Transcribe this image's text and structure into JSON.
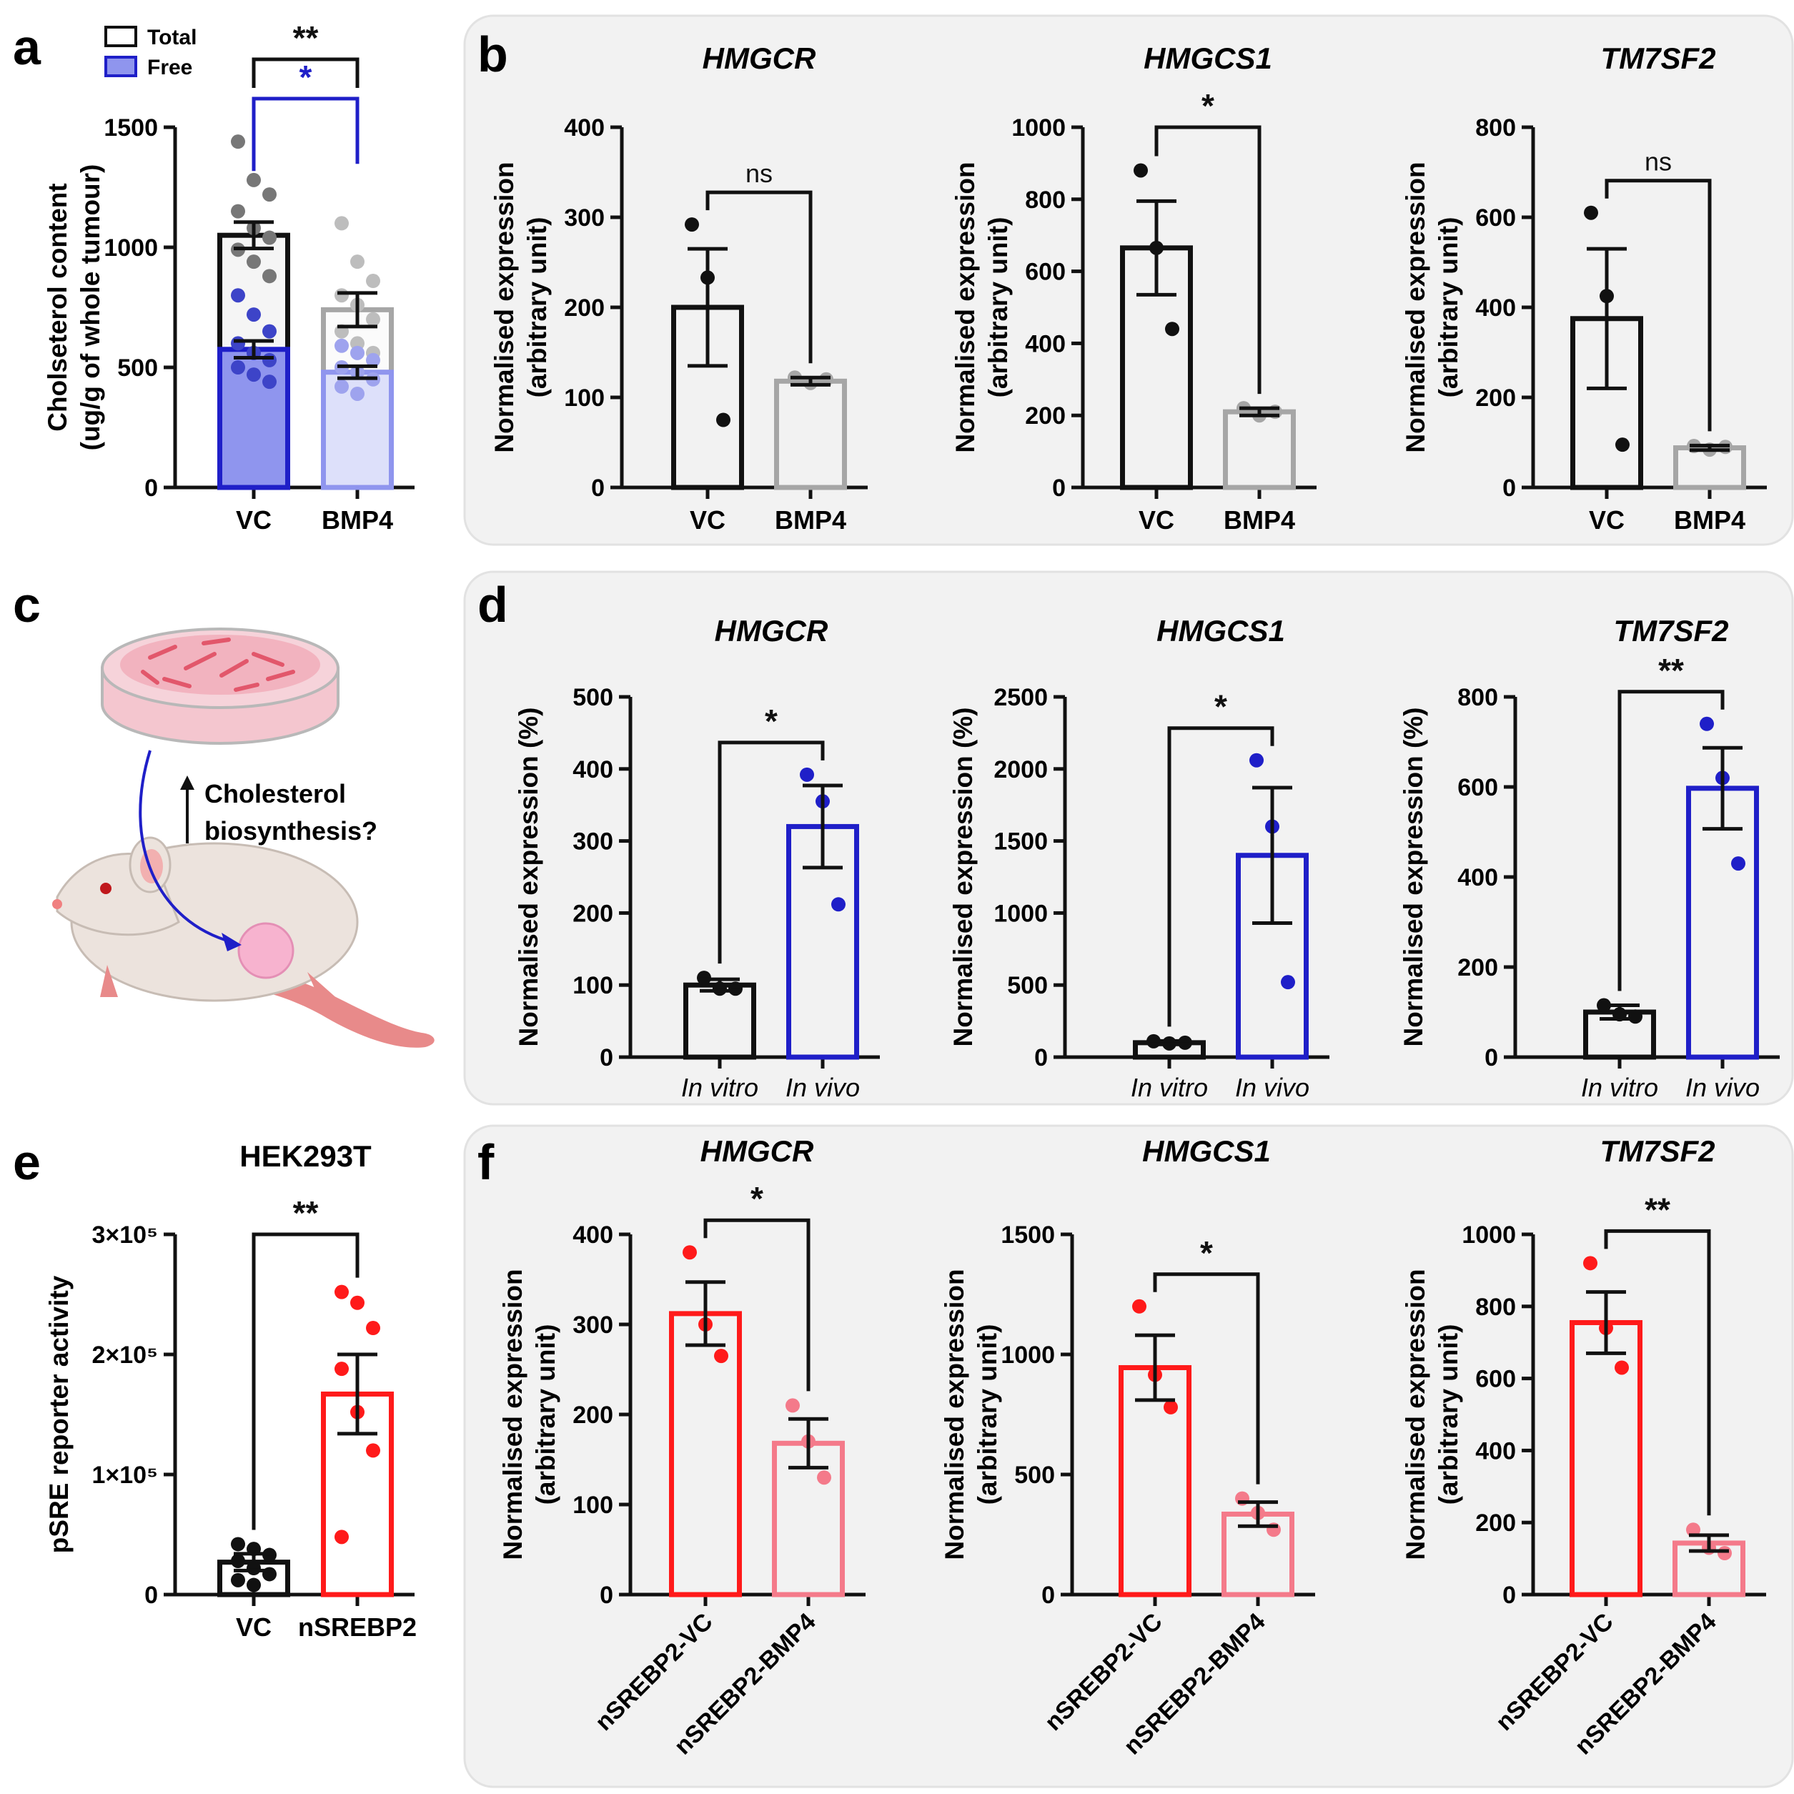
{
  "colors": {
    "black": "#111111",
    "grey": "#a6a6a6",
    "blue": "#1f1fc8",
    "light_blue_fill": "#dde0fa",
    "blue_fill": "#8f95ee",
    "red": "#ff1a1a",
    "pink": "#f47a8a",
    "panel_bg": "#f2f2f2",
    "panel_border": "#e2e2e2",
    "mouse_body": "#ece3dd",
    "tumour": "#f7b3cf",
    "dish": "#f4c6cf"
  },
  "panel_c": {
    "letter": "c",
    "caption_line1": "Cholesterol",
    "caption_line2": "biosynthesis?"
  },
  "chart_data": [
    {
      "id": "a",
      "letter": "a",
      "type": "bar",
      "title": "",
      "ylabel": "Cholseterol content\n(ug/g of whole tumour)",
      "xlabel": "",
      "ylim": [
        0,
        1500
      ],
      "yticks": [
        "0",
        "500",
        "1000",
        "1500"
      ],
      "categories": [
        "VC",
        "BMP4"
      ],
      "legend": [
        "Total",
        "Free"
      ],
      "legend_position": "top-left",
      "series": [
        {
          "name": "Total",
          "values": [
            1050,
            740
          ],
          "errors": [
            55,
            70
          ],
          "points": [
            [
              1440,
              1280,
              1220,
              1150,
              1080,
              1040,
              990,
              940,
              880
            ],
            [
              1100,
              940,
              860,
              800,
              760,
              700,
              650,
              600,
              560
            ]
          ]
        },
        {
          "name": "Free",
          "values": [
            575,
            480
          ],
          "errors": [
            35,
            25
          ],
          "points": [
            [
              800,
              720,
              650,
              600,
              560,
              530,
              500,
              470,
              440
            ],
            [
              590,
              560,
              530,
              500,
              480,
              450,
              420,
              390
            ]
          ]
        }
      ],
      "annotations": [
        {
          "text": "**",
          "between": [
            "VC",
            "BMP4"
          ],
          "series": "Total"
        },
        {
          "text": "*",
          "between": [
            "VC",
            "BMP4"
          ],
          "series": "Free"
        }
      ]
    },
    {
      "id": "b1",
      "letter": "b",
      "type": "bar",
      "title": "HMGCR",
      "ylabel": "Normalised expression\n(arbitrary unit)",
      "ylim": [
        0,
        400
      ],
      "yticks": [
        "0",
        "100",
        "200",
        "300",
        "400"
      ],
      "categories": [
        "VC",
        "BMP4"
      ],
      "values": [
        200,
        118
      ],
      "errors": [
        65,
        4
      ],
      "points": [
        [
          292,
          233,
          75
        ],
        [
          122,
          116,
          120
        ]
      ],
      "significance": "ns"
    },
    {
      "id": "b2",
      "type": "bar",
      "title": "HMGCS1",
      "ylabel": "Normalised expression\n(arbitrary unit)",
      "ylim": [
        0,
        1000
      ],
      "yticks": [
        "0",
        "200",
        "400",
        "600",
        "800",
        "1000"
      ],
      "categories": [
        "VC",
        "BMP4"
      ],
      "values": [
        665,
        210
      ],
      "errors": [
        130,
        10
      ],
      "points": [
        [
          880,
          665,
          440
        ],
        [
          220,
          200,
          210
        ]
      ],
      "significance": "*"
    },
    {
      "id": "b3",
      "type": "bar",
      "title": "TM7SF2",
      "ylabel": "Normalised expression\n(arbitrary unit)",
      "ylim": [
        0,
        800
      ],
      "yticks": [
        "0",
        "200",
        "400",
        "600",
        "800"
      ],
      "categories": [
        "VC",
        "BMP4"
      ],
      "values": [
        375,
        88
      ],
      "errors": [
        155,
        5
      ],
      "points": [
        [
          610,
          425,
          95
        ],
        [
          92,
          84,
          90
        ]
      ],
      "significance": "ns"
    },
    {
      "id": "d1",
      "letter": "d",
      "type": "bar",
      "title": "HMGCR",
      "ylabel": "Normalised expression (%)",
      "ylim": [
        0,
        500
      ],
      "yticks": [
        "0",
        "100",
        "200",
        "300",
        "400",
        "500"
      ],
      "categories": [
        "In vitro",
        "In vivo"
      ],
      "values": [
        100,
        320
      ],
      "errors": [
        8,
        57
      ],
      "points": [
        [
          110,
          95,
          95
        ],
        [
          392,
          355,
          212
        ]
      ],
      "significance": "*"
    },
    {
      "id": "d2",
      "type": "bar",
      "title": "HMGCS1",
      "ylabel": "Normalised expression (%)",
      "ylim": [
        0,
        2500
      ],
      "yticks": [
        "0",
        "500",
        "1000",
        "1500",
        "2000",
        "2500"
      ],
      "categories": [
        "In vitro",
        "In vivo"
      ],
      "values": [
        100,
        1400
      ],
      "errors": [
        12,
        470
      ],
      "points": [
        [
          110,
          95,
          100
        ],
        [
          2060,
          1600,
          520
        ]
      ],
      "significance": "*"
    },
    {
      "id": "d3",
      "type": "bar",
      "title": "TM7SF2",
      "ylabel": "Normalised expression (%)",
      "ylim": [
        0,
        800
      ],
      "yticks": [
        "0",
        "200",
        "400",
        "600",
        "800"
      ],
      "categories": [
        "In vitro",
        "In vivo"
      ],
      "values": [
        100,
        597
      ],
      "errors": [
        15,
        90
      ],
      "points": [
        [
          115,
          95,
          90
        ],
        [
          740,
          620,
          430
        ]
      ],
      "significance": "**"
    },
    {
      "id": "e",
      "letter": "e",
      "type": "bar",
      "title": "HEK293T",
      "ylabel": "pSRE reporter activity",
      "ylim": [
        0,
        300000
      ],
      "yticks": [
        "0",
        "1×10⁵",
        "2×10⁵",
        "3×10⁵"
      ],
      "categories": [
        "VC",
        "nSREBP2"
      ],
      "values": [
        27000,
        167000
      ],
      "errors": [
        7000,
        33000
      ],
      "points": [
        [
          42000,
          38000,
          33000,
          28000,
          22000,
          17000,
          12000,
          8000
        ],
        [
          252000,
          243000,
          222000,
          188000,
          152000,
          120000,
          48000
        ]
      ],
      "significance": "**"
    },
    {
      "id": "f1",
      "letter": "f",
      "type": "bar",
      "title": "HMGCR",
      "ylabel": "Normalised expression\n(arbitrary unit)",
      "ylim": [
        0,
        400
      ],
      "yticks": [
        "0",
        "100",
        "200",
        "300",
        "400"
      ],
      "categories": [
        "nSREBP2-VC",
        "nSREBP2-BMP4"
      ],
      "values": [
        312,
        168
      ],
      "errors": [
        35,
        27
      ],
      "points": [
        [
          380,
          300,
          265
        ],
        [
          210,
          170,
          130
        ]
      ],
      "significance": "*"
    },
    {
      "id": "f2",
      "type": "bar",
      "title": "HMGCS1",
      "ylabel": "Normalised expression\n(arbitrary unit)",
      "ylim": [
        0,
        1500
      ],
      "yticks": [
        "0",
        "500",
        "1000",
        "1500"
      ],
      "categories": [
        "nSREBP2-VC",
        "nSREBP2-BMP4"
      ],
      "values": [
        945,
        335
      ],
      "errors": [
        135,
        50
      ],
      "points": [
        [
          1200,
          915,
          780
        ],
        [
          400,
          340,
          270
        ]
      ],
      "significance": "*"
    },
    {
      "id": "f3",
      "type": "bar",
      "title": "TM7SF2",
      "ylabel": "Normalised expression\n(arbitrary unit)",
      "ylim": [
        0,
        1000
      ],
      "yticks": [
        "0",
        "200",
        "400",
        "600",
        "800",
        "1000"
      ],
      "categories": [
        "nSREBP2-VC",
        "nSREBP2-BMP4"
      ],
      "values": [
        755,
        143
      ],
      "errors": [
        85,
        22
      ],
      "points": [
        [
          920,
          740,
          630
        ],
        [
          180,
          130,
          115
        ]
      ],
      "significance": "**"
    }
  ]
}
